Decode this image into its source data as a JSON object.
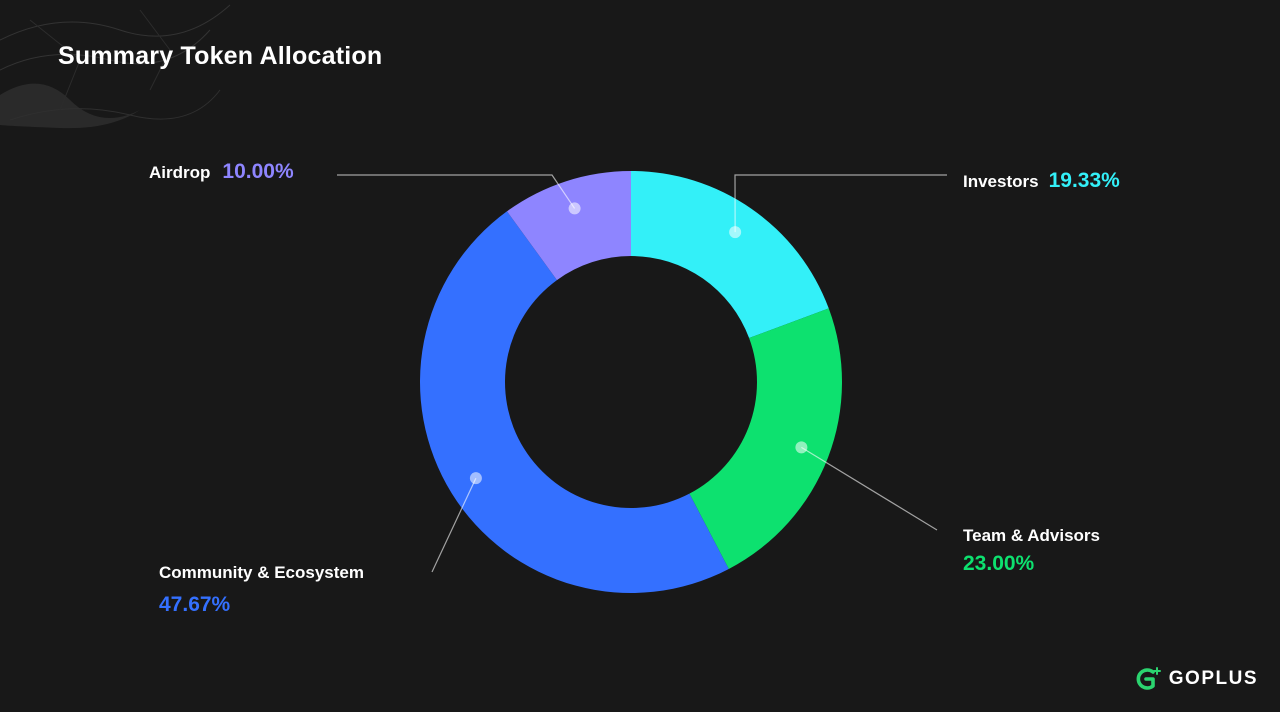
{
  "title": "Summary Token Allocation",
  "brand": {
    "name": "GOPLUS",
    "icon": "goplus-logo-icon",
    "color": "#2bd46f"
  },
  "background": "#181818",
  "chart_data": {
    "type": "pie",
    "title": "Summary Token Allocation",
    "donut": true,
    "slices": [
      {
        "label": "Investors",
        "value": 19.33,
        "display": "19.33%",
        "color": "#33f0f8"
      },
      {
        "label": "Team & Advisors",
        "value": 23.0,
        "display": "23.00%",
        "color": "#0de16f"
      },
      {
        "label": "Community & Ecosystem",
        "value": 47.67,
        "display": "47.67%",
        "color": "#3470ff"
      },
      {
        "label": "Airdrop",
        "value": 10.0,
        "display": "10.00%",
        "color": "#8e85ff"
      }
    ]
  }
}
